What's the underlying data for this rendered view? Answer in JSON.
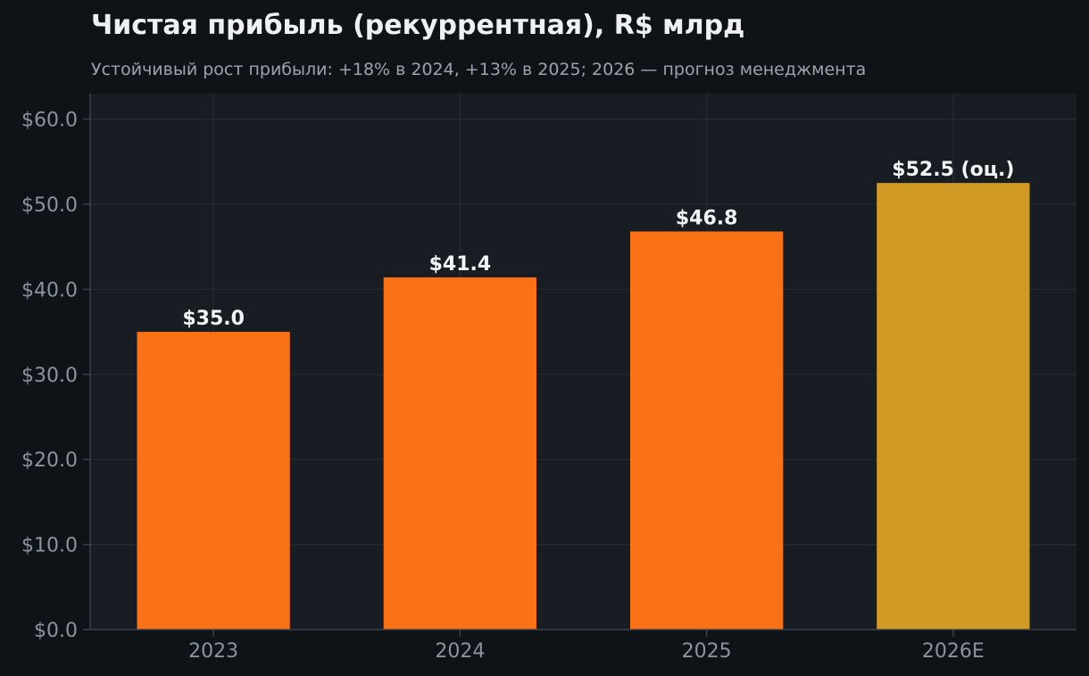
{
  "chart_data": {
    "type": "bar",
    "title": "Чистая прибыль (рекуррентная), R$ млрд",
    "subtitle": "Устойчивый рост прибыли: +18% в 2024, +13% в 2025; 2026 — прогноз менеджмента",
    "xlabel": "",
    "ylabel": "",
    "categories": [
      "2023",
      "2024",
      "2025",
      "2026E"
    ],
    "values": [
      35.0,
      41.4,
      46.8,
      52.5
    ],
    "value_labels": [
      "$35.0",
      "$41.4",
      "$46.8",
      "$52.5 (оц.)"
    ],
    "ylim": [
      0,
      63
    ],
    "yticks": [
      0,
      10,
      20,
      30,
      40,
      50,
      60
    ],
    "ytick_labels": [
      "$0.0",
      "$10.0",
      "$20.0",
      "$30.0",
      "$40.0",
      "$50.0",
      "$60.0"
    ],
    "grid": true,
    "legend": "none",
    "colors": {
      "actual": "#f97316",
      "estimate": "#d19a24",
      "background": "#0f1317",
      "plot_background": "#181c23",
      "grid": "#262c35",
      "axis": "#3a414b"
    },
    "bar_colors": [
      "actual",
      "actual",
      "actual",
      "estimate"
    ]
  }
}
